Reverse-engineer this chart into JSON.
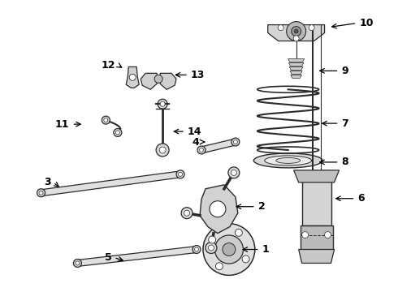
{
  "bg_color": "#ffffff",
  "line_color": "#2a2a2a",
  "label_color": "#000000",
  "fig_width": 4.9,
  "fig_height": 3.6,
  "dpi": 100,
  "gray_fill": "#c8c8c8",
  "light_fill": "#e8e8e8"
}
